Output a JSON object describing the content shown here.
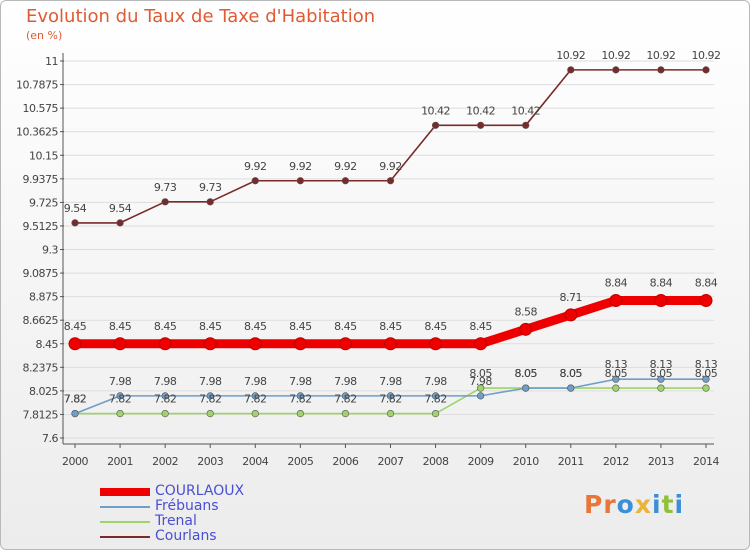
{
  "title": "Evolution du Taux de Taxe d'Habitation",
  "unit": "(en %)",
  "logo": [
    "P",
    "r",
    "o",
    "x",
    "i",
    "t",
    "i"
  ],
  "logo_colors": [
    "#e8763a",
    "#e8763a",
    "#3a8fd6",
    "#e8b53a",
    "#3a8fd6",
    "#8fc23a",
    "#3a8fd6"
  ],
  "chart_data": {
    "type": "line",
    "title": "Evolution du Taux de Taxe d'Habitation",
    "ylabel": "(en %)",
    "xlabel": "",
    "ylim": [
      7.6,
      11.0
    ],
    "grid": "horizontal",
    "legend_position": "bottom-left",
    "x": [
      "2000",
      "2001",
      "2002",
      "2003",
      "2004",
      "2005",
      "2006",
      "2007",
      "2008",
      "2009",
      "2010",
      "2011",
      "2012",
      "2013",
      "2014"
    ],
    "y_ticks": [
      {
        "value": 7.6,
        "label": "7.6"
      },
      {
        "value": 7.8125,
        "label": "7.8125"
      },
      {
        "value": 8.025,
        "label": "8.025"
      },
      {
        "value": 8.2375,
        "label": "8.2375"
      },
      {
        "value": 8.45,
        "label": "8.45"
      },
      {
        "value": 8.6625,
        "label": "8.6625"
      },
      {
        "value": 8.875,
        "label": "8.875"
      },
      {
        "value": 9.0875,
        "label": "9.0875"
      },
      {
        "value": 9.3,
        "label": "9.3"
      },
      {
        "value": 9.5125,
        "label": "9.5125"
      },
      {
        "value": 9.725,
        "label": "9.725"
      },
      {
        "value": 9.9375,
        "label": "9.9375"
      },
      {
        "value": 10.15,
        "label": "10.15"
      },
      {
        "value": 10.3625,
        "label": "10.3625"
      },
      {
        "value": 10.575,
        "label": "10.575"
      },
      {
        "value": 10.7875,
        "label": "10.7875"
      },
      {
        "value": 11.0,
        "label": "11"
      }
    ],
    "series": [
      {
        "name": "Courlans",
        "color": "#7a2a2a",
        "values": [
          9.54,
          9.54,
          9.73,
          9.73,
          9.92,
          9.92,
          9.92,
          9.92,
          10.42,
          10.42,
          10.42,
          10.92,
          10.92,
          10.92,
          10.92
        ],
        "labels": [
          "9.54",
          "9.54",
          "9.73",
          "9.73",
          "9.92",
          "9.92",
          "9.92",
          "9.92",
          "10.42",
          "10.42",
          "10.42",
          "10.92",
          "10.92",
          "10.92",
          "10.92"
        ]
      },
      {
        "name": "Trenal",
        "color": "#9ed46a",
        "values": [
          7.82,
          7.82,
          7.82,
          7.82,
          7.82,
          7.82,
          7.82,
          7.82,
          7.82,
          8.05,
          8.05,
          8.05,
          8.05,
          8.05,
          8.05
        ],
        "labels": [
          "7.82",
          "7.82",
          "7.82",
          "7.82",
          "7.82",
          "7.82",
          "7.82",
          "7.82",
          "7.82",
          "8.05",
          "8.05",
          "8.05",
          "8.05",
          "8.05",
          "8.05"
        ]
      },
      {
        "name": "Frébuans",
        "color": "#6f9ec8",
        "values": [
          7.82,
          7.98,
          7.98,
          7.98,
          7.98,
          7.98,
          7.98,
          7.98,
          7.98,
          7.98,
          8.05,
          8.05,
          8.13,
          8.13,
          8.13
        ],
        "labels": [
          "7.82",
          "7.98",
          "7.98",
          "7.98",
          "7.98",
          "7.98",
          "7.98",
          "7.98",
          "7.98",
          "7.98",
          "8.05",
          "8.05",
          "8.13",
          "8.13",
          "8.13"
        ]
      },
      {
        "name": "COURLAOUX",
        "color": "#ee0000",
        "values": [
          8.45,
          8.45,
          8.45,
          8.45,
          8.45,
          8.45,
          8.45,
          8.45,
          8.45,
          8.45,
          8.58,
          8.71,
          8.84,
          8.84,
          8.84
        ],
        "labels": [
          "8.45",
          "8.45",
          "8.45",
          "8.45",
          "8.45",
          "8.45",
          "8.45",
          "8.45",
          "8.45",
          "8.45",
          "8.58",
          "8.71",
          "8.84",
          "8.84",
          "8.84"
        ]
      }
    ],
    "legend": [
      {
        "name": "COURLAOUX",
        "color": "#ee0000"
      },
      {
        "name": "Frébuans",
        "color": "#6f9ec8"
      },
      {
        "name": "Trenal",
        "color": "#9ed46a"
      },
      {
        "name": "Courlans",
        "color": "#7a2a2a"
      }
    ]
  }
}
